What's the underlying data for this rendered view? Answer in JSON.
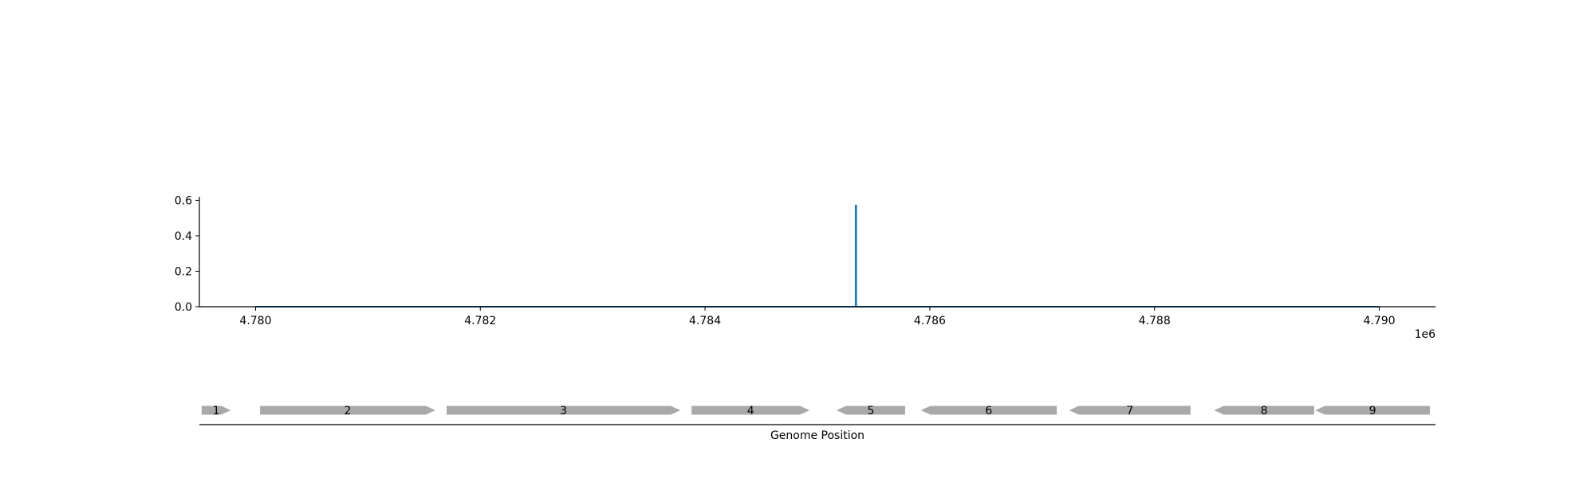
{
  "chart_data": [
    {
      "type": "line",
      "title": "",
      "xlabel": "",
      "ylabel": "",
      "x_offset_label": "1e6",
      "xlim": [
        4779500,
        4790500
      ],
      "ylim": [
        0,
        0.62
      ],
      "xticks": [
        4780000,
        4782000,
        4784000,
        4786000,
        4788000,
        4790000
      ],
      "xtick_labels": [
        "4.780",
        "4.782",
        "4.784",
        "4.786",
        "4.788",
        "4.790"
      ],
      "yticks": [
        0.0,
        0.2,
        0.4,
        0.6
      ],
      "ytick_labels": [
        "0.0",
        "0.2",
        "0.4",
        "0.6"
      ],
      "grid": false,
      "series": [
        {
          "color": "#1f77b4",
          "x": [
            4780000,
            4785340,
            4785340,
            4785345,
            4785345,
            4790000
          ],
          "y": [
            0,
            0,
            0.57,
            0.57,
            0,
            0
          ]
        }
      ]
    },
    {
      "type": "gene-track",
      "title": "",
      "xlabel": "Genome Position",
      "xlim": [
        4779500,
        4790500
      ],
      "feature_color": "#a9a9a9",
      "genes": [
        {
          "label": "1",
          "start": 4779520,
          "end": 4779780,
          "strand": "+"
        },
        {
          "label": "2",
          "start": 4780040,
          "end": 4781600,
          "strand": "+"
        },
        {
          "label": "3",
          "start": 4781700,
          "end": 4783780,
          "strand": "+"
        },
        {
          "label": "4",
          "start": 4783880,
          "end": 4784930,
          "strand": "+"
        },
        {
          "label": "5",
          "start": 4785170,
          "end": 4785780,
          "strand": "-"
        },
        {
          "label": "6",
          "start": 4785920,
          "end": 4787130,
          "strand": "-"
        },
        {
          "label": "7",
          "start": 4787240,
          "end": 4788320,
          "strand": "-"
        },
        {
          "label": "8",
          "start": 4788530,
          "end": 4789420,
          "strand": "-"
        },
        {
          "label": "9",
          "start": 4789430,
          "end": 4790450,
          "strand": "-"
        }
      ]
    }
  ]
}
